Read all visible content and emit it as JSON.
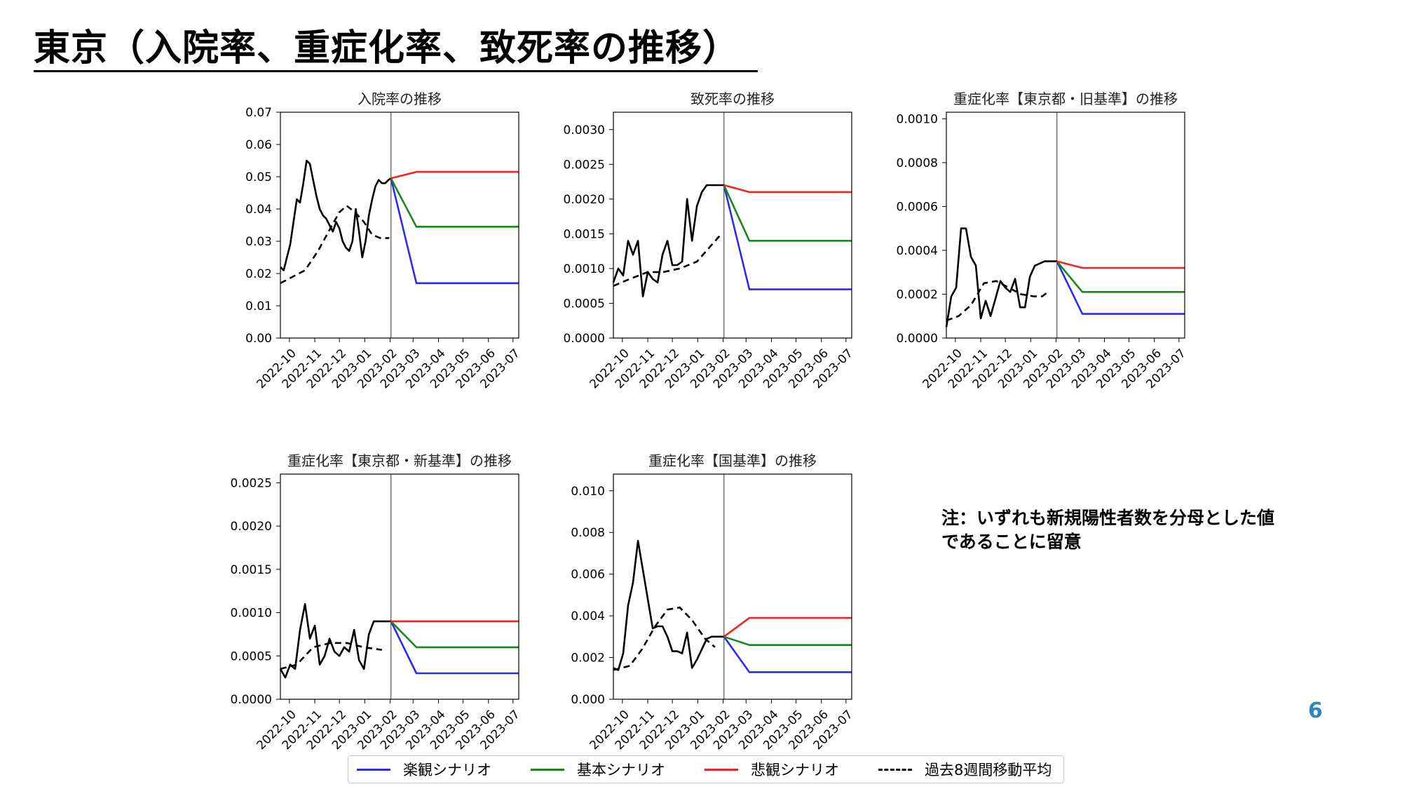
{
  "page": {
    "title": "東京（入院率、重症化率、致死率の推移）",
    "note": "注：いずれも新規陽性者数を分母とした値\nであることに留意",
    "page_number": "6"
  },
  "colors": {
    "optimistic": "#2a2af5",
    "basic": "#138a13",
    "pessimistic": "#f52222",
    "past": "#000000"
  },
  "legend": [
    {
      "label": "楽観シナリオ",
      "color": "#2a2af5",
      "style": "solid"
    },
    {
      "label": "基本シナリオ",
      "color": "#138a13",
      "style": "solid"
    },
    {
      "label": "悲観シナリオ",
      "color": "#f52222",
      "style": "solid"
    },
    {
      "label": "過去8週間移動平均",
      "color": "#000000",
      "style": "dashed"
    }
  ],
  "chart_data": [
    {
      "type": "line",
      "title": "入院率の推移",
      "xlim": [
        "2022-09-20",
        "2023-07-08"
      ],
      "ylim": [
        0,
        0.07
      ],
      "yticks": [
        0,
        0.01,
        0.02,
        0.03,
        0.04,
        0.05,
        0.06,
        0.07
      ],
      "ytick_labels": [
        "0.00",
        "0.01",
        "0.02",
        "0.03",
        "0.04",
        "0.05",
        "0.06",
        "0.07"
      ],
      "xtick_labels": [
        "2022-10",
        "2022-11",
        "2022-12",
        "2023-01",
        "2023-02",
        "2023-03",
        "2023-04",
        "2023-05",
        "2023-06",
        "2023-07"
      ],
      "vline": "2023-02-02",
      "series": [
        {
          "key": "past",
          "x": [
            "2022-09-20",
            "2022-09-24",
            "2022-09-28",
            "2022-10-02",
            "2022-10-06",
            "2022-10-10",
            "2022-10-14",
            "2022-10-18",
            "2022-10-22",
            "2022-10-26",
            "2022-10-30",
            "2022-11-03",
            "2022-11-07",
            "2022-11-11",
            "2022-11-15",
            "2022-11-19",
            "2022-11-23",
            "2022-11-27",
            "2022-12-01",
            "2022-12-05",
            "2022-12-09",
            "2022-12-13",
            "2022-12-17",
            "2022-12-21",
            "2022-12-25",
            "2022-12-29",
            "2023-01-02",
            "2023-01-06",
            "2023-01-10",
            "2023-01-14",
            "2023-01-18",
            "2023-01-22",
            "2023-01-26",
            "2023-01-30",
            "2023-02-02"
          ],
          "values": [
            0.022,
            0.021,
            0.025,
            0.029,
            0.036,
            0.043,
            0.042,
            0.048,
            0.055,
            0.054,
            0.049,
            0.044,
            0.04,
            0.038,
            0.037,
            0.035,
            0.033,
            0.036,
            0.034,
            0.03,
            0.028,
            0.027,
            0.03,
            0.04,
            0.033,
            0.025,
            0.03,
            0.038,
            0.043,
            0.047,
            0.049,
            0.048,
            0.048,
            0.049,
            0.0495
          ]
        },
        {
          "key": "avg",
          "x": [
            "2022-09-20",
            "2022-10-05",
            "2022-10-20",
            "2022-11-05",
            "2022-11-20",
            "2022-12-01",
            "2022-12-10",
            "2022-12-20",
            "2022-12-31",
            "2023-01-10",
            "2023-01-20",
            "2023-01-31"
          ],
          "values": [
            0.017,
            0.019,
            0.021,
            0.027,
            0.034,
            0.039,
            0.041,
            0.039,
            0.036,
            0.032,
            0.031,
            0.031
          ]
        },
        {
          "key": "optimistic",
          "x": [
            "2023-02-02",
            "2023-03-05",
            "2023-07-08"
          ],
          "values": [
            0.0495,
            0.017,
            0.017
          ]
        },
        {
          "key": "basic",
          "x": [
            "2023-02-02",
            "2023-03-05",
            "2023-07-08"
          ],
          "values": [
            0.0495,
            0.0345,
            0.0345
          ]
        },
        {
          "key": "pessimistic",
          "x": [
            "2023-02-02",
            "2023-03-05",
            "2023-07-08"
          ],
          "values": [
            0.0495,
            0.0515,
            0.0515
          ]
        }
      ]
    },
    {
      "type": "line",
      "title": "致死率の推移",
      "xlim": [
        "2022-09-20",
        "2023-07-08"
      ],
      "ylim": [
        0,
        0.00325
      ],
      "yticks": [
        0,
        0.0005,
        0.001,
        0.0015,
        0.002,
        0.0025,
        0.003
      ],
      "ytick_labels": [
        "0.0000",
        "0.0005",
        "0.0010",
        "0.0015",
        "0.0020",
        "0.0025",
        "0.0030"
      ],
      "xtick_labels": [
        "2022-10",
        "2022-11",
        "2022-12",
        "2023-01",
        "2023-02",
        "2023-03",
        "2023-04",
        "2023-05",
        "2023-06",
        "2023-07"
      ],
      "vline": "2023-02-02",
      "series": [
        {
          "key": "past",
          "x": [
            "2022-09-20",
            "2022-09-26",
            "2022-10-02",
            "2022-10-08",
            "2022-10-14",
            "2022-10-20",
            "2022-10-26",
            "2022-11-01",
            "2022-11-07",
            "2022-11-13",
            "2022-11-19",
            "2022-11-25",
            "2022-12-01",
            "2022-12-07",
            "2022-12-13",
            "2022-12-19",
            "2022-12-25",
            "2022-12-31",
            "2023-01-06",
            "2023-01-12",
            "2023-01-18",
            "2023-01-24",
            "2023-01-30",
            "2023-02-02"
          ],
          "values": [
            0.0008,
            0.001,
            0.0009,
            0.0014,
            0.0012,
            0.0014,
            0.0006,
            0.00095,
            0.00085,
            0.0008,
            0.0012,
            0.0014,
            0.00105,
            0.00105,
            0.0011,
            0.002,
            0.0014,
            0.0019,
            0.0021,
            0.0022,
            0.0022,
            0.0022,
            0.0022,
            0.0022
          ]
        },
        {
          "key": "avg",
          "x": [
            "2022-09-20",
            "2022-10-10",
            "2022-11-01",
            "2022-11-20",
            "2022-12-10",
            "2022-12-31",
            "2023-01-15",
            "2023-01-30"
          ],
          "values": [
            0.00075,
            0.00085,
            0.00095,
            0.00095,
            0.001,
            0.0011,
            0.0013,
            0.0015
          ]
        },
        {
          "key": "optimistic",
          "x": [
            "2023-02-02",
            "2023-03-05",
            "2023-07-08"
          ],
          "values": [
            0.0022,
            0.0007,
            0.0007
          ]
        },
        {
          "key": "basic",
          "x": [
            "2023-02-02",
            "2023-03-05",
            "2023-07-08"
          ],
          "values": [
            0.0022,
            0.0014,
            0.0014
          ]
        },
        {
          "key": "pessimistic",
          "x": [
            "2023-02-02",
            "2023-03-05",
            "2023-07-08"
          ],
          "values": [
            0.0022,
            0.0021,
            0.0021
          ]
        }
      ]
    },
    {
      "type": "line",
      "title": "重症化率【東京都・旧基準】の推移",
      "xlim": [
        "2022-09-20",
        "2023-07-08"
      ],
      "ylim": [
        0,
        0.00103
      ],
      "yticks": [
        0,
        0.0002,
        0.0004,
        0.0006,
        0.0008,
        0.001
      ],
      "ytick_labels": [
        "0.0000",
        "0.0002",
        "0.0004",
        "0.0006",
        "0.0008",
        "0.0010"
      ],
      "xtick_labels": [
        "2022-10",
        "2022-11",
        "2022-12",
        "2023-01",
        "2023-02",
        "2023-03",
        "2023-04",
        "2023-05",
        "2023-06",
        "2023-07"
      ],
      "vline": "2023-02-02",
      "series": [
        {
          "key": "past",
          "x": [
            "2022-09-20",
            "2022-09-26",
            "2022-10-02",
            "2022-10-08",
            "2022-10-14",
            "2022-10-20",
            "2022-10-26",
            "2022-11-01",
            "2022-11-07",
            "2022-11-13",
            "2022-11-19",
            "2022-11-25",
            "2022-12-01",
            "2022-12-07",
            "2022-12-13",
            "2022-12-19",
            "2022-12-25",
            "2022-12-31",
            "2023-01-06",
            "2023-01-12",
            "2023-01-18",
            "2023-01-24",
            "2023-01-30",
            "2023-02-02"
          ],
          "values": [
            5e-05,
            0.00019,
            0.00023,
            0.0005,
            0.0005,
            0.00037,
            0.00033,
            9e-05,
            0.00017,
            0.0001,
            0.00018,
            0.00026,
            0.00023,
            0.00021,
            0.00027,
            0.00014,
            0.00014,
            0.00028,
            0.00033,
            0.00034,
            0.00035,
            0.00035,
            0.00035,
            0.00035
          ]
        },
        {
          "key": "avg",
          "x": [
            "2022-09-20",
            "2022-10-05",
            "2022-10-20",
            "2022-11-05",
            "2022-11-20",
            "2022-12-05",
            "2022-12-20",
            "2023-01-05",
            "2023-01-15",
            "2023-01-22"
          ],
          "values": [
            8e-05,
            0.0001,
            0.00015,
            0.00025,
            0.00026,
            0.00023,
            0.0002,
            0.00019,
            0.00019,
            0.00021
          ]
        },
        {
          "key": "optimistic",
          "x": [
            "2023-02-02",
            "2023-03-05",
            "2023-07-08"
          ],
          "values": [
            0.00035,
            0.00011,
            0.00011
          ]
        },
        {
          "key": "basic",
          "x": [
            "2023-02-02",
            "2023-03-05",
            "2023-07-08"
          ],
          "values": [
            0.00035,
            0.00021,
            0.00021
          ]
        },
        {
          "key": "pessimistic",
          "x": [
            "2023-02-02",
            "2023-03-05",
            "2023-07-08"
          ],
          "values": [
            0.00035,
            0.00032,
            0.00032
          ]
        }
      ]
    },
    {
      "type": "line",
      "title": "重症化率【東京都・新基準】の推移",
      "xlim": [
        "2022-09-20",
        "2023-07-08"
      ],
      "ylim": [
        0,
        0.0026
      ],
      "yticks": [
        0,
        0.0005,
        0.001,
        0.0015,
        0.002,
        0.0025
      ],
      "ytick_labels": [
        "0.0000",
        "0.0005",
        "0.0010",
        "0.0015",
        "0.0020",
        "0.0025"
      ],
      "xtick_labels": [
        "2022-10",
        "2022-11",
        "2022-12",
        "2023-01",
        "2023-02",
        "2023-03",
        "2023-04",
        "2023-05",
        "2023-06",
        "2023-07"
      ],
      "vline": "2023-02-02",
      "series": [
        {
          "key": "past",
          "x": [
            "2022-09-20",
            "2022-09-26",
            "2022-10-02",
            "2022-10-08",
            "2022-10-14",
            "2022-10-20",
            "2022-10-26",
            "2022-11-01",
            "2022-11-07",
            "2022-11-13",
            "2022-11-19",
            "2022-11-25",
            "2022-12-01",
            "2022-12-07",
            "2022-12-13",
            "2022-12-19",
            "2022-12-25",
            "2022-12-31",
            "2023-01-06",
            "2023-01-12",
            "2023-01-18",
            "2023-01-24",
            "2023-01-30",
            "2023-02-02"
          ],
          "values": [
            0.00035,
            0.00025,
            0.0004,
            0.00035,
            0.0008,
            0.0011,
            0.0007,
            0.00085,
            0.0004,
            0.0005,
            0.0007,
            0.00055,
            0.0005,
            0.0006,
            0.00055,
            0.0008,
            0.00045,
            0.00035,
            0.00075,
            0.0009,
            0.0009,
            0.0009,
            0.0009,
            0.0009
          ]
        },
        {
          "key": "avg",
          "x": [
            "2022-09-20",
            "2022-10-10",
            "2022-10-30",
            "2022-11-20",
            "2022-12-10",
            "2022-12-31",
            "2023-01-22"
          ],
          "values": [
            0.00035,
            0.0004,
            0.0006,
            0.00065,
            0.00065,
            0.0006,
            0.00057
          ]
        },
        {
          "key": "optimistic",
          "x": [
            "2023-02-02",
            "2023-03-05",
            "2023-07-08"
          ],
          "values": [
            0.0009,
            0.0003,
            0.0003
          ]
        },
        {
          "key": "basic",
          "x": [
            "2023-02-02",
            "2023-03-05",
            "2023-07-08"
          ],
          "values": [
            0.0009,
            0.0006,
            0.0006
          ]
        },
        {
          "key": "pessimistic",
          "x": [
            "2023-02-02",
            "2023-03-05",
            "2023-07-08"
          ],
          "values": [
            0.0009,
            0.0009,
            0.0009
          ]
        }
      ]
    },
    {
      "type": "line",
      "title": "重症化率【国基準】の推移",
      "xlim": [
        "2022-09-20",
        "2023-07-08"
      ],
      "ylim": [
        0,
        0.0108
      ],
      "yticks": [
        0,
        0.002,
        0.004,
        0.006,
        0.008,
        0.01
      ],
      "ytick_labels": [
        "0.000",
        "0.002",
        "0.004",
        "0.006",
        "0.008",
        "0.010"
      ],
      "xtick_labels": [
        "2022-10",
        "2022-11",
        "2022-12",
        "2023-01",
        "2023-02",
        "2023-03",
        "2023-04",
        "2023-05",
        "2023-06",
        "2023-07"
      ],
      "vline": "2023-02-02",
      "series": [
        {
          "key": "past",
          "x": [
            "2022-09-20",
            "2022-09-26",
            "2022-10-02",
            "2022-10-08",
            "2022-10-14",
            "2022-10-20",
            "2022-10-26",
            "2022-11-01",
            "2022-11-07",
            "2022-11-13",
            "2022-11-19",
            "2022-11-25",
            "2022-12-01",
            "2022-12-07",
            "2022-12-13",
            "2022-12-19",
            "2022-12-25",
            "2022-12-31",
            "2023-01-06",
            "2023-01-12",
            "2023-01-18",
            "2023-01-24",
            "2023-01-30",
            "2023-02-02"
          ],
          "values": [
            0.0015,
            0.0014,
            0.0022,
            0.0045,
            0.0056,
            0.0076,
            0.0062,
            0.0048,
            0.0034,
            0.0035,
            0.0035,
            0.003,
            0.0023,
            0.0023,
            0.0022,
            0.0032,
            0.0015,
            0.0019,
            0.0024,
            0.0029,
            0.003,
            0.003,
            0.003,
            0.003
          ]
        },
        {
          "key": "avg",
          "x": [
            "2022-09-20",
            "2022-10-10",
            "2022-10-25",
            "2022-11-10",
            "2022-11-25",
            "2022-12-10",
            "2022-12-25",
            "2023-01-10",
            "2023-01-22"
          ],
          "values": [
            0.0014,
            0.0016,
            0.0024,
            0.0035,
            0.0043,
            0.0044,
            0.0038,
            0.0029,
            0.0025
          ]
        },
        {
          "key": "optimistic",
          "x": [
            "2023-02-02",
            "2023-03-05",
            "2023-07-08"
          ],
          "values": [
            0.003,
            0.0013,
            0.0013
          ]
        },
        {
          "key": "basic",
          "x": [
            "2023-02-02",
            "2023-03-05",
            "2023-07-08"
          ],
          "values": [
            0.003,
            0.0026,
            0.0026
          ]
        },
        {
          "key": "pessimistic",
          "x": [
            "2023-02-02",
            "2023-03-05",
            "2023-07-08"
          ],
          "values": [
            0.003,
            0.0039,
            0.0039
          ]
        }
      ]
    }
  ]
}
